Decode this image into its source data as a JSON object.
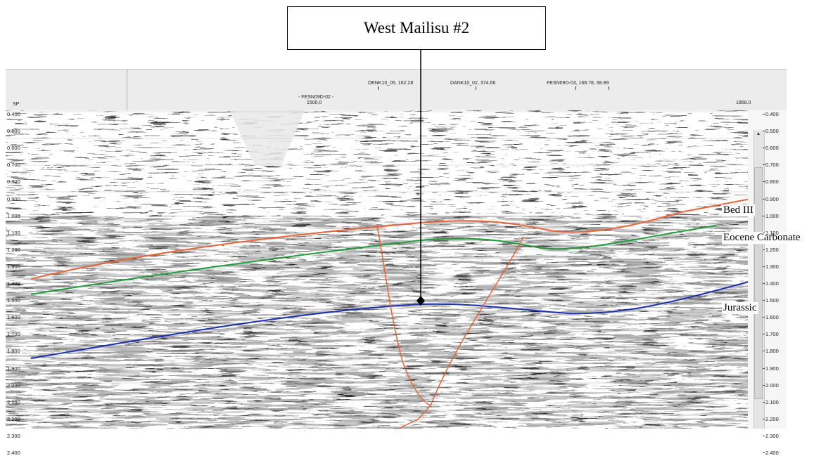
{
  "well": {
    "name": "West Mailisu #2"
  },
  "header": {
    "sp_label": "SP:",
    "line_name": "- FESN09D-02 -",
    "shotpoint_mid": "1500.0",
    "shotpoint_end": "1868.0",
    "tie1": "DENK10_05, 162.28",
    "tie2": "DANK10_02, 374.66",
    "tie3": "FESN09D-03, 168.78, 68.89"
  },
  "horizons": {
    "bed3": "Bed III",
    "eocene": "Eocene Carbonate",
    "jurassic": "Jurassic",
    "colors": {
      "bed3": "#e8653a",
      "eocene": "#1f9a3c",
      "jurassic": "#1c2fb5",
      "fault": "#e8653a"
    }
  },
  "time_ticks": [
    "0.400",
    "0.500",
    "0.600",
    "0.700",
    "0.800",
    "0.900",
    "1.000",
    "1.100",
    "1.200",
    "1.300",
    "1.400",
    "1.500",
    "1.600",
    "1.700",
    "1.800",
    "1.900",
    "2.000",
    "2.100",
    "2.200",
    "2.300",
    "2.400"
  ]
}
